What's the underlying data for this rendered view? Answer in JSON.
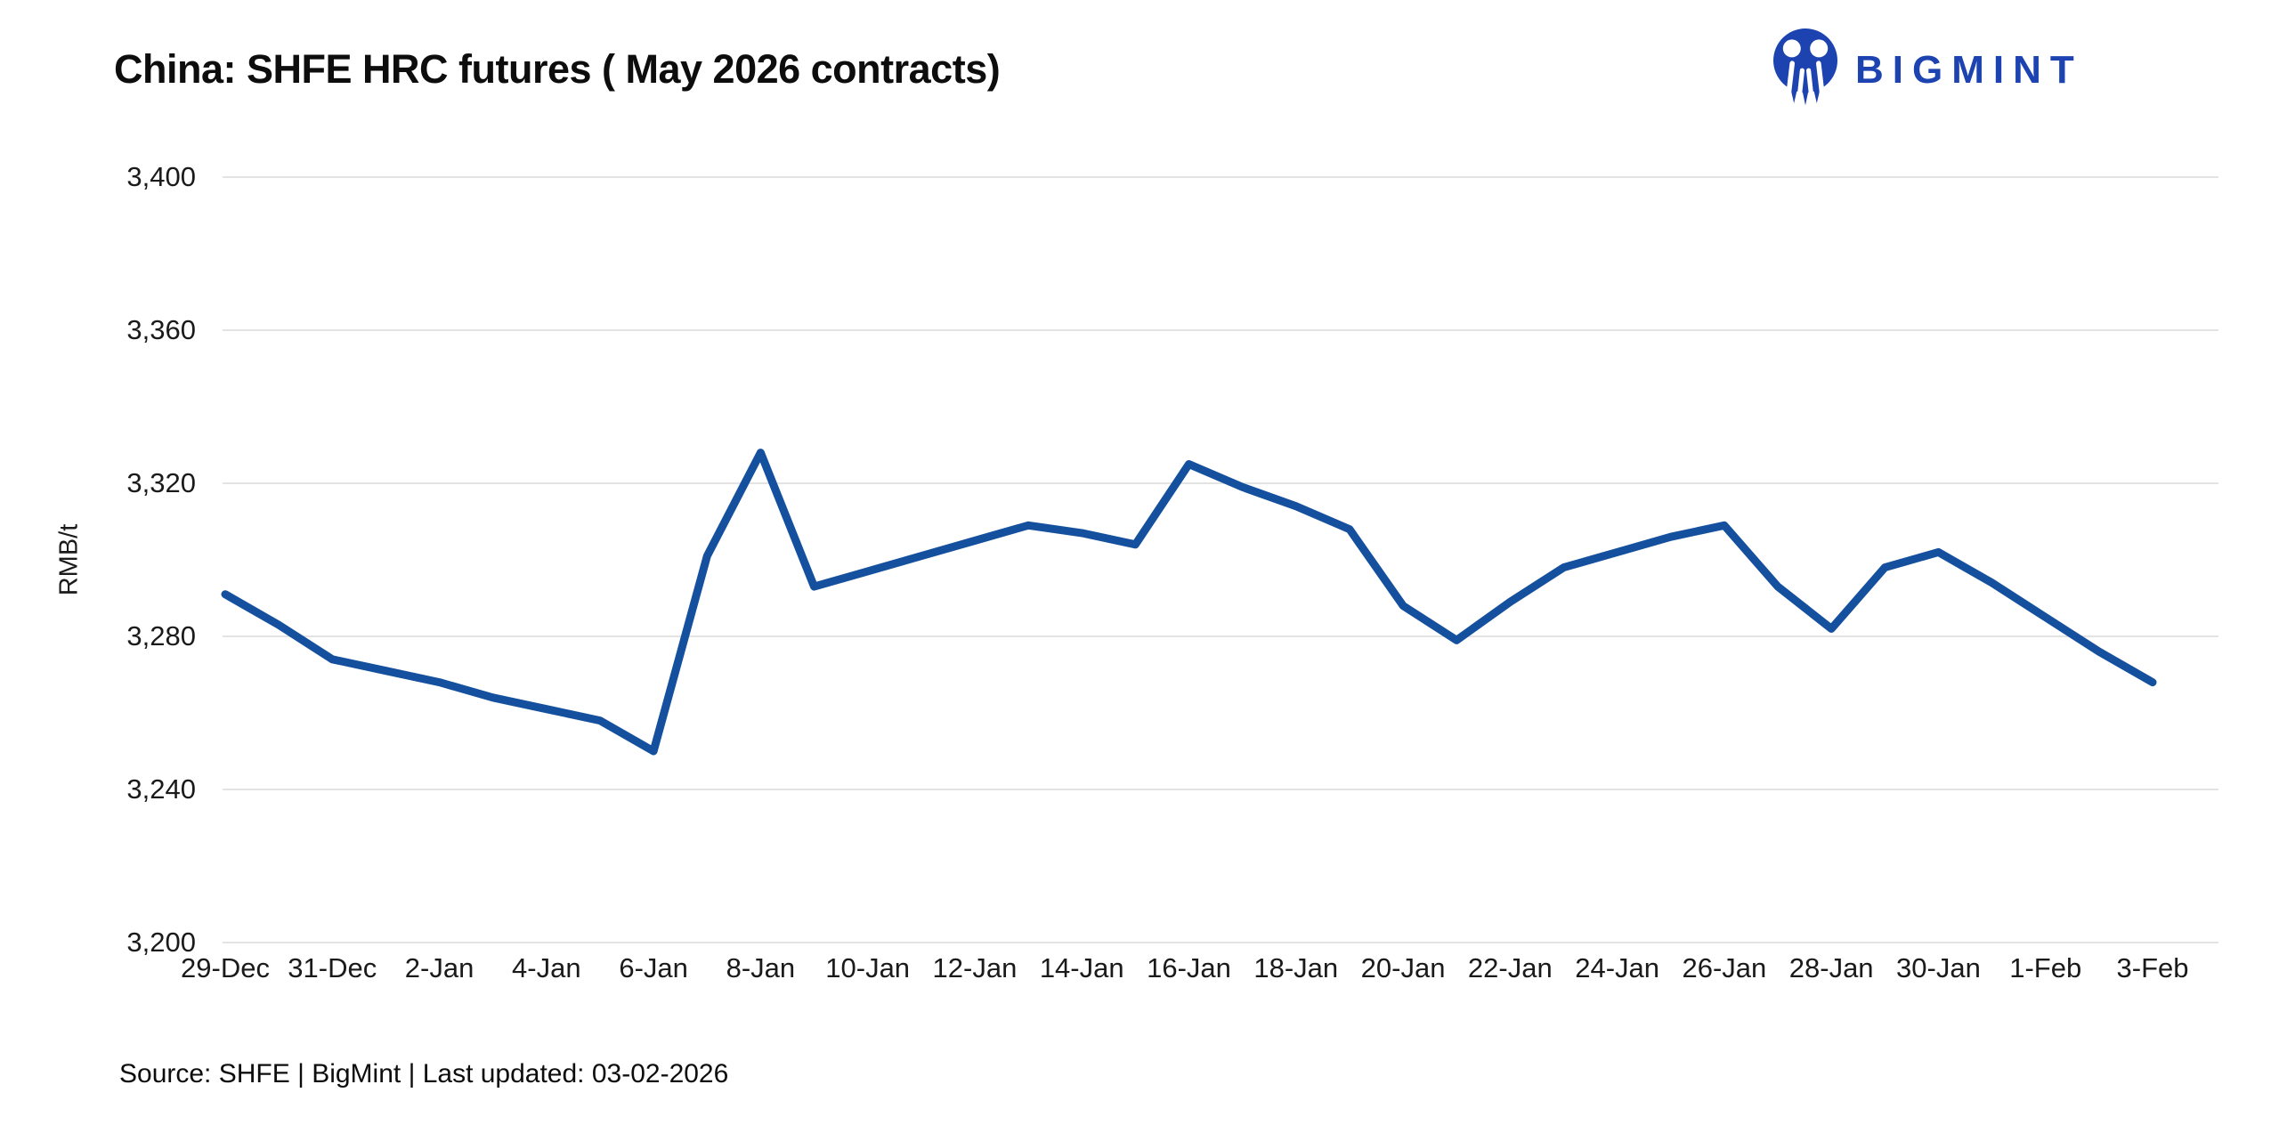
{
  "header": {
    "title": "China: SHFE HRC futures ( May 2026 contracts)",
    "brand": "BIGMINT"
  },
  "footer": {
    "source": "Source: SHFE | BigMint | Last updated: 03-02-2026"
  },
  "colors": {
    "line": "#14509E",
    "grid": "#E3E3E3",
    "logo_blue": "#1C43B0",
    "text": "#1A1A1A"
  },
  "chart_data": {
    "type": "line",
    "title": "China: SHFE HRC futures ( May 2026 contracts)",
    "xlabel": "",
    "ylabel": "RMB/t",
    "ylim": [
      3200,
      3400
    ],
    "y_ticks": [
      3400,
      3360,
      3320,
      3280,
      3240,
      3200
    ],
    "grid": "horizontal",
    "legend": "none",
    "x": [
      "29-Dec",
      "30-Dec",
      "31-Dec",
      "1-Jan",
      "2-Jan",
      "3-Jan",
      "4-Jan",
      "5-Jan",
      "6-Jan",
      "7-Jan",
      "8-Jan",
      "9-Jan",
      "10-Jan",
      "11-Jan",
      "12-Jan",
      "13-Jan",
      "14-Jan",
      "15-Jan",
      "16-Jan",
      "17-Jan",
      "18-Jan",
      "19-Jan",
      "20-Jan",
      "21-Jan",
      "22-Jan",
      "23-Jan",
      "24-Jan",
      "25-Jan",
      "26-Jan",
      "27-Jan",
      "28-Jan",
      "29-Jan",
      "30-Jan",
      "31-Jan",
      "1-Feb",
      "2-Feb",
      "3-Feb"
    ],
    "values": [
      3291,
      3283,
      3274,
      3271,
      3268,
      3264,
      3261,
      3258,
      3250,
      3301,
      3328,
      3293,
      3297,
      3301,
      3305,
      3309,
      3307,
      3304,
      3325,
      3319,
      3314,
      3308,
      3288,
      3279,
      3289,
      3298,
      3302,
      3306,
      3309,
      3293,
      3282,
      3298,
      3302,
      3294,
      3285,
      3276,
      3268
    ],
    "x_tick_labels": [
      "29-Dec",
      "31-Dec",
      "2-Jan",
      "4-Jan",
      "6-Jan",
      "8-Jan",
      "10-Jan",
      "12-Jan",
      "14-Jan",
      "16-Jan",
      "18-Jan",
      "20-Jan",
      "22-Jan",
      "24-Jan",
      "26-Jan",
      "28-Jan",
      "30-Jan",
      "1-Feb",
      "3-Feb"
    ],
    "x_label_every": 2
  }
}
